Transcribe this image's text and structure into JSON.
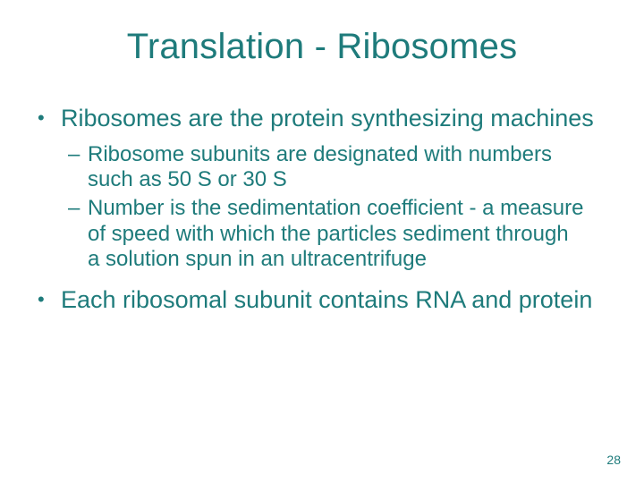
{
  "colors": {
    "text": "#1e7b7b",
    "background": "#ffffff"
  },
  "title": "Translation - Ribosomes",
  "title_fontsize": 40,
  "body_fontsize_l1": 27,
  "body_fontsize_l2": 24,
  "bullets": [
    {
      "text": "Ribosomes are the protein synthesizing machines",
      "sub": [
        "Ribosome subunits are designated with numbers such as 50 S or 30 S",
        "Number is the sedimentation coefficient - a measure of speed with which the particles sediment through a solution spun in an ultracentrifuge"
      ]
    },
    {
      "text": "Each ribosomal subunit contains RNA and protein",
      "sub": []
    }
  ],
  "page_number": "28"
}
